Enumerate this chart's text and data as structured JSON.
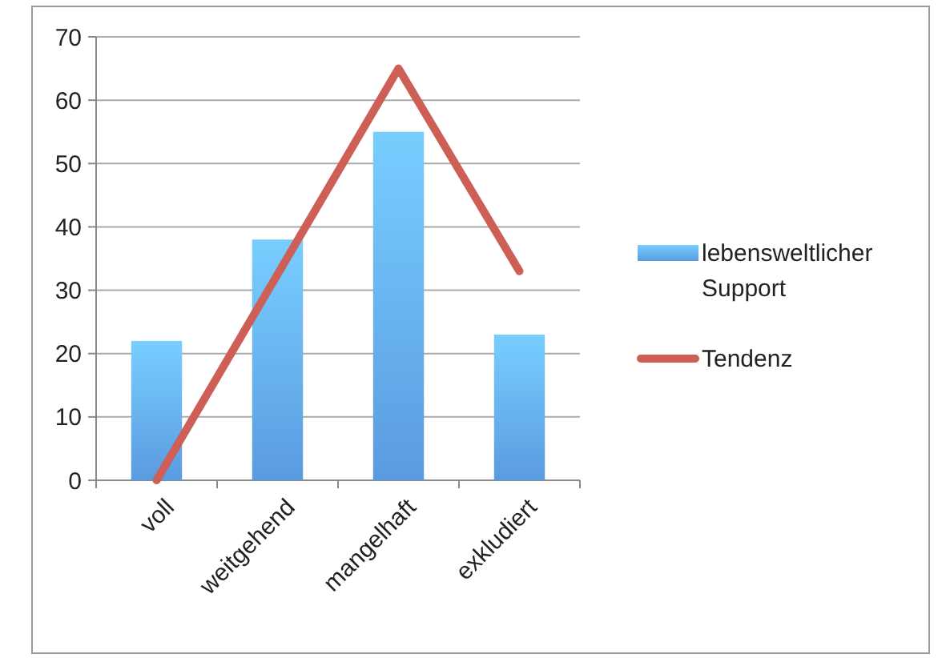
{
  "chart_data": {
    "type": "bar",
    "categories": [
      "voll",
      "weitgehend",
      "mangelhaft",
      "exkludiert"
    ],
    "series": [
      {
        "name": "lebensweltlicher Support",
        "color": "#5a9be0",
        "values": [
          22,
          38,
          55,
          23
        ]
      },
      {
        "name": "Tendenz",
        "type": "line",
        "color": "#cd5f57",
        "values": [
          0,
          32.5,
          65,
          33
        ]
      }
    ],
    "ylim": [
      0,
      70
    ],
    "yticks": [
      0,
      10,
      20,
      30,
      40,
      50,
      60,
      70
    ],
    "grid": "y",
    "legend": "right",
    "marker": "none",
    "line_style": "solid"
  }
}
